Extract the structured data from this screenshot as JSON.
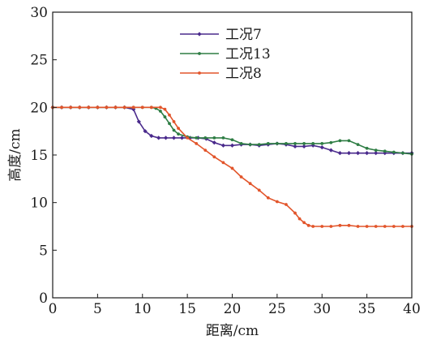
{
  "chart_data": {
    "type": "line",
    "xlabel": "距离/cm",
    "ylabel": "高度/cm",
    "xlim": [
      0,
      40
    ],
    "ylim": [
      0,
      30
    ],
    "xticks": [
      0,
      5,
      10,
      15,
      20,
      25,
      30,
      35,
      40
    ],
    "yticks": [
      0,
      5,
      10,
      15,
      20,
      25,
      30
    ],
    "grid": false,
    "legend_position": "top-center",
    "series": [
      {
        "name": "工况7",
        "color": "#4a2a8c",
        "marker": "diamond",
        "x": [
          0,
          1,
          2,
          3,
          4,
          5,
          6,
          7,
          8,
          9,
          9.6,
          10.3,
          11,
          11.8,
          12.6,
          13.5,
          14.4,
          15.3,
          16.2,
          17.1,
          18,
          19,
          20,
          21,
          22,
          23,
          24,
          25,
          26,
          27,
          28,
          29,
          30,
          31,
          32,
          33,
          34,
          35,
          36,
          37,
          38,
          39,
          40
        ],
        "y": [
          20,
          20,
          20,
          20,
          20,
          20,
          20,
          20,
          20,
          19.8,
          18.5,
          17.5,
          17.0,
          16.8,
          16.8,
          16.8,
          16.8,
          16.8,
          16.8,
          16.7,
          16.3,
          16.0,
          16.0,
          16.1,
          16.1,
          16.0,
          16.1,
          16.2,
          16.1,
          15.9,
          15.9,
          16.0,
          15.8,
          15.5,
          15.2,
          15.2,
          15.2,
          15.2,
          15.2,
          15.2,
          15.2,
          15.2,
          15.2
        ]
      },
      {
        "name": "工况13",
        "color": "#2e7d44",
        "marker": "dot",
        "x": [
          0,
          1,
          2,
          3,
          4,
          5,
          6,
          7,
          8,
          9,
          10,
          11,
          11.5,
          12,
          12.5,
          13,
          13.5,
          14,
          15,
          16,
          17,
          18,
          19,
          20,
          21,
          22,
          23,
          24,
          25,
          26,
          27,
          28,
          29,
          30,
          31,
          32,
          33,
          34,
          35,
          36,
          37,
          38,
          39,
          40
        ],
        "y": [
          20,
          20,
          20,
          20,
          20,
          20,
          20,
          20,
          20,
          20,
          20,
          20,
          19.9,
          19.6,
          19.0,
          18.3,
          17.6,
          17.2,
          16.9,
          16.8,
          16.8,
          16.8,
          16.8,
          16.6,
          16.2,
          16.1,
          16.1,
          16.2,
          16.2,
          16.2,
          16.2,
          16.2,
          16.2,
          16.2,
          16.3,
          16.5,
          16.5,
          16.1,
          15.7,
          15.5,
          15.4,
          15.3,
          15.2,
          15.1
        ]
      },
      {
        "name": "工况8",
        "color": "#e2552b",
        "marker": "dot",
        "x": [
          0,
          1,
          2,
          3,
          4,
          5,
          6,
          7,
          8,
          9,
          10,
          11,
          12,
          12.5,
          13,
          13.5,
          14,
          15,
          16,
          17,
          18,
          19,
          20,
          21,
          22,
          23,
          24,
          25,
          26,
          27,
          27.5,
          28,
          28.5,
          29,
          30,
          31,
          32,
          33,
          34,
          35,
          36,
          37,
          38,
          39,
          40
        ],
        "y": [
          20,
          20,
          20,
          20,
          20,
          20,
          20,
          20,
          20,
          20,
          20,
          20,
          20,
          19.8,
          19.2,
          18.5,
          17.8,
          16.8,
          16.2,
          15.5,
          14.8,
          14.2,
          13.6,
          12.7,
          12.0,
          11.3,
          10.5,
          10.1,
          9.8,
          8.9,
          8.3,
          7.9,
          7.6,
          7.5,
          7.5,
          7.5,
          7.6,
          7.6,
          7.5,
          7.5,
          7.5,
          7.5,
          7.5,
          7.5,
          7.5
        ]
      }
    ]
  }
}
